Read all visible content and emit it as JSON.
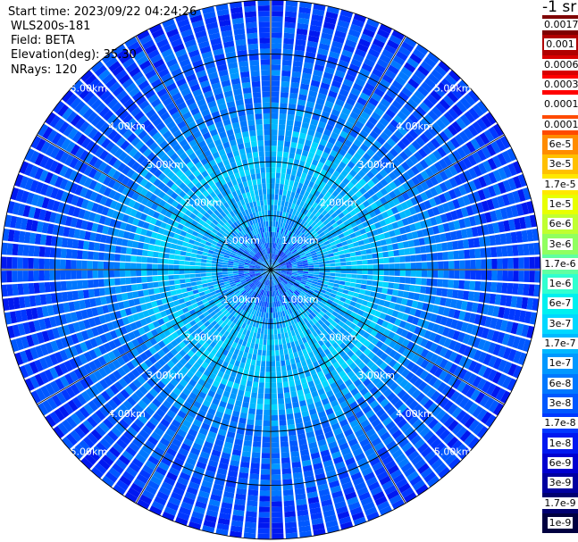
{
  "header": {
    "start_time": "Start time: 2023/09/22 04:24:26",
    "device": "WLS200s-181",
    "field": "Field: BETA",
    "elevation": "Elevation(deg): 35.30",
    "nrays": "NRays: 120"
  },
  "colorbar": {
    "unit": "-1 sr",
    "labels": [
      "0.0017",
      "0.001",
      "0.0006",
      "0.0003",
      "0.00017",
      "0.0001",
      "6e-5",
      "3e-5",
      "1.7e-5",
      "1e-5",
      "6e-6",
      "3e-6",
      "1.7e-6",
      "1e-6",
      "6e-7",
      "3e-7",
      "1.7e-7",
      "1e-7",
      "6e-8",
      "3e-8",
      "1.7e-8",
      "1e-8",
      "6e-9",
      "3e-9",
      "1.7e-9",
      "1e-9"
    ],
    "colors": [
      "#7f0000",
      "#b00000",
      "#d80000",
      "#ff0000",
      "#ffffff",
      "#ff4a00",
      "#ff8c00",
      "#ffc000",
      "#ffe800",
      "#e8ff00",
      "#c0ff30",
      "#90ff60",
      "#60ffa0",
      "#30ffd0",
      "#00f0f0",
      "#00d8ff",
      "#00b8ff",
      "#0098ff",
      "#0078ff",
      "#0058ff",
      "#0038ff",
      "#0018f0",
      "#0000d0",
      "#0000a0",
      "#000070",
      "#000040"
    ]
  },
  "chart_data": {
    "type": "heatmap",
    "projection": "polar",
    "rays": 120,
    "range_unit": "km",
    "range_rings_km": [
      1,
      2,
      3,
      4,
      5
    ],
    "ring_labels": [
      "1.00km",
      "2.00km",
      "3.00km",
      "4.00km",
      "5.00km"
    ],
    "max_range_km": 5.0,
    "spokes_deg": [
      0,
      30,
      60,
      90,
      120,
      150,
      180,
      210,
      240,
      270,
      300,
      330
    ],
    "value_profile": [
      {
        "range_km": 0.0,
        "beta": 1.7e-07
      },
      {
        "range_km": 0.3,
        "beta": 3e-08
      },
      {
        "range_km": 0.6,
        "beta": 6e-08
      },
      {
        "range_km": 1.2,
        "beta": 1.7e-07
      },
      {
        "range_km": 2.2,
        "beta": 1.7e-07
      },
      {
        "range_km": 3.0,
        "beta": 6e-08
      },
      {
        "range_km": 4.0,
        "beta": 3e-08
      },
      {
        "range_km": 5.0,
        "beta": 1.7e-08
      }
    ]
  }
}
